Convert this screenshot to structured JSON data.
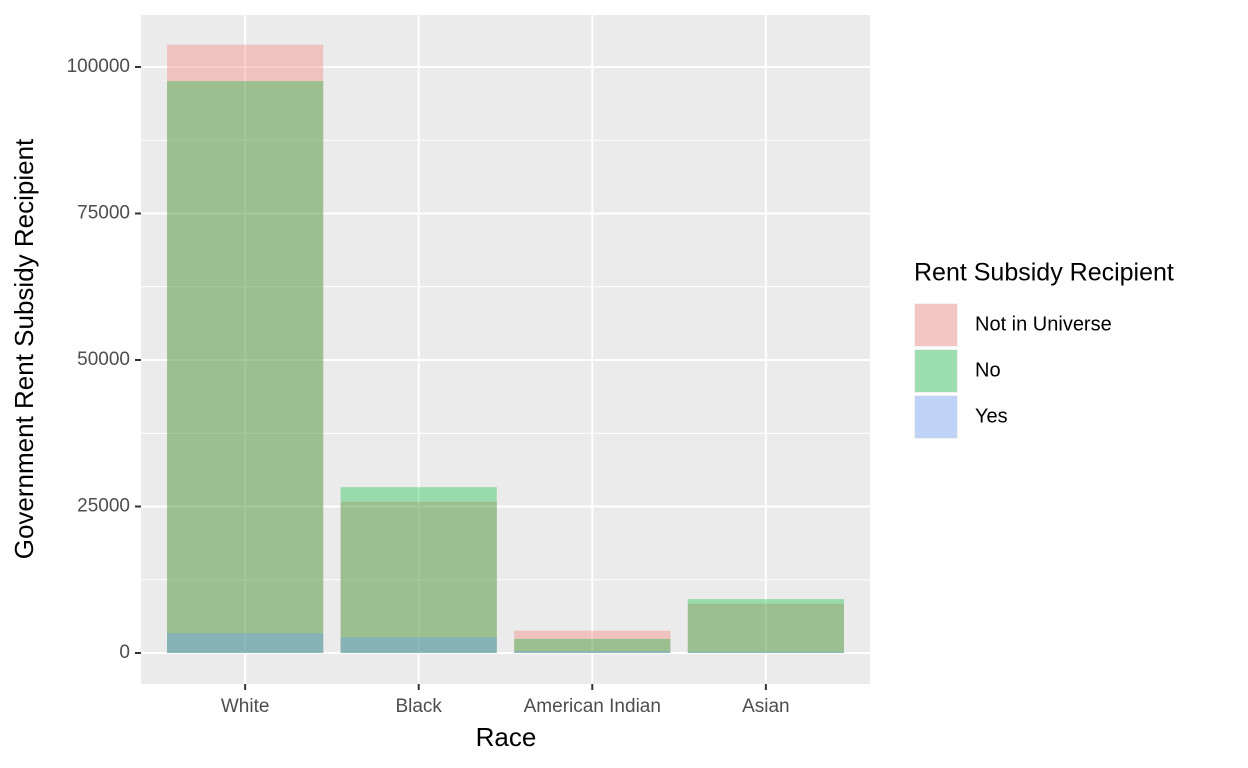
{
  "chart_data": {
    "type": "bar",
    "x_label": "Race",
    "y_label": "Government Rent Subsidy Recipient",
    "legend_title": "Rent Subsidy Recipient",
    "categories": [
      "White",
      "Black",
      "American Indian",
      "Asian"
    ],
    "series": [
      {
        "name": "Not in Universe",
        "color": "#F8766D",
        "values": [
          103800,
          25800,
          3800,
          8400
        ]
      },
      {
        "name": "No",
        "color": "#00BA38",
        "values": [
          97600,
          28300,
          2400,
          9200
        ]
      },
      {
        "name": "Yes",
        "color": "#619CFF",
        "values": [
          3400,
          2700,
          300,
          200
        ]
      }
    ],
    "ylim": [
      -5290,
      108870
    ],
    "yticks": [
      0,
      25000,
      50000,
      75000,
      100000
    ],
    "grid": true,
    "legend": "right"
  }
}
